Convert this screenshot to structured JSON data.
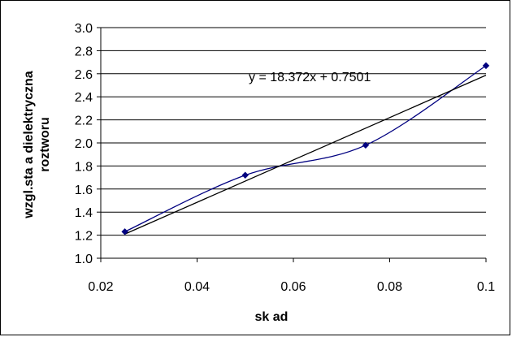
{
  "chart_data": {
    "type": "scatter",
    "title": "",
    "xlabel": "sk ad",
    "ylabel_lines": [
      "wzgl.sta  a dielektryczna",
      "roztworu"
    ],
    "xlim": [
      0.02,
      0.1
    ],
    "ylim": [
      1.0,
      3.0
    ],
    "x_ticks": [
      "0.02",
      "0.04",
      "0.06",
      "0.08",
      "0.1"
    ],
    "y_ticks": [
      "1.0",
      "1.2",
      "1.4",
      "1.6",
      "1.8",
      "2.0",
      "2.2",
      "2.4",
      "2.6",
      "2.8",
      "3.0"
    ],
    "grid": "horizontal",
    "legend": "none",
    "series": [
      {
        "x": [
          0.025,
          0.05,
          0.075,
          0.1
        ],
        "y": [
          1.23,
          1.72,
          1.98,
          2.67
        ],
        "color": "#000080",
        "marker": "diamond",
        "smoothed": true
      }
    ],
    "trendline": {
      "type": "linear",
      "slope": 18.372,
      "intercept": 0.7501,
      "x_range": [
        0.025,
        0.1
      ],
      "color": "#000000",
      "equation": "y = 18.372x + 0.7501"
    }
  }
}
